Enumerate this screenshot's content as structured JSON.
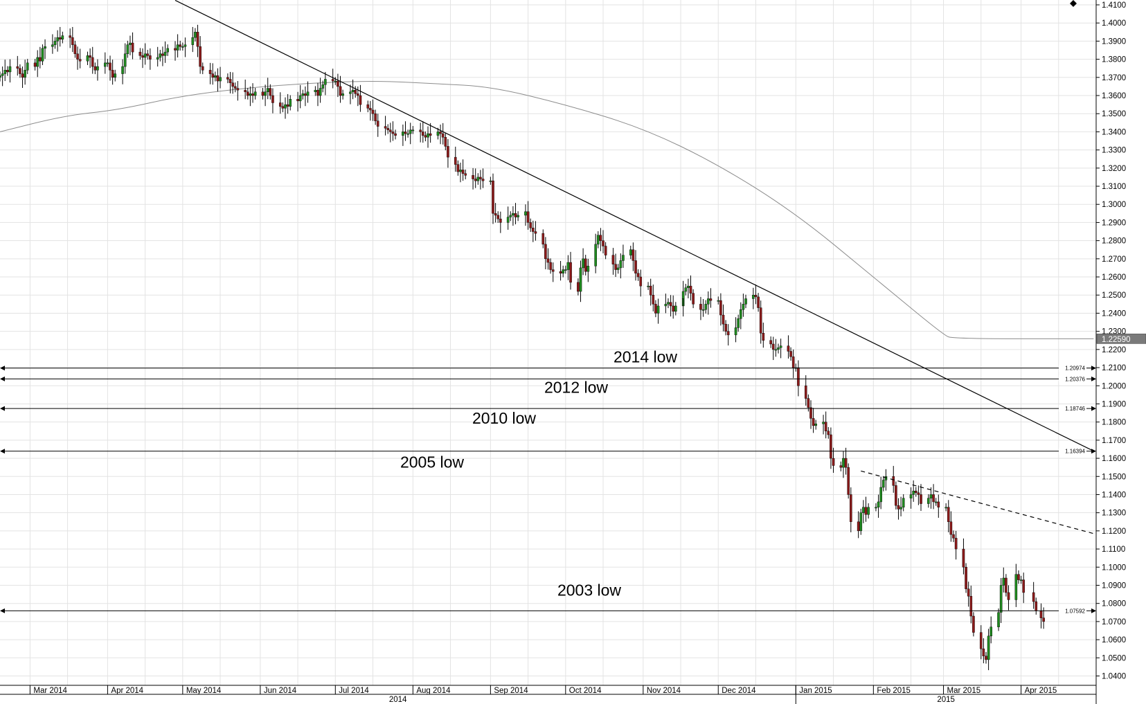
{
  "chart_data": {
    "type": "candlestick",
    "title": "",
    "y_axis": {
      "position": "right",
      "range": [
        1.035,
        1.41
      ],
      "ticks": [
        1.41,
        1.4,
        1.39,
        1.38,
        1.37,
        1.36,
        1.35,
        1.34,
        1.33,
        1.32,
        1.31,
        1.3,
        1.29,
        1.28,
        1.27,
        1.26,
        1.25,
        1.24,
        1.23,
        1.22,
        1.21,
        1.2,
        1.19,
        1.18,
        1.17,
        1.16,
        1.15,
        1.14,
        1.13,
        1.12,
        1.11,
        1.1,
        1.09,
        1.08,
        1.07,
        1.06,
        1.05,
        1.04
      ],
      "tick_labels": [
        "1.4100",
        "1.4000",
        "1.3900",
        "1.3800",
        "1.3700",
        "1.3600",
        "1.3500",
        "1.3400",
        "1.3300",
        "1.3200",
        "1.3100",
        "1.3000",
        "1.2900",
        "1.2800",
        "1.2700",
        "1.2600",
        "1.2500",
        "1.2400",
        "1.2300",
        "1.2200",
        "1.2100",
        "1.2000",
        "1.1900",
        "1.1800",
        "1.1700",
        "1.1600",
        "1.1500",
        "1.1400",
        "1.1300",
        "1.1200",
        "1.1100",
        "1.1000",
        "1.0900",
        "1.0800",
        "1.0700",
        "1.0600",
        "1.0500",
        "1.0400"
      ]
    },
    "x_axis": {
      "months": [
        {
          "label": "Mar 2014",
          "start": "2014-03-01"
        },
        {
          "label": "Apr 2014",
          "start": "2014-04-01"
        },
        {
          "label": "May 2014",
          "start": "2014-05-01"
        },
        {
          "label": "Jun 2014",
          "start": "2014-06-01"
        },
        {
          "label": "Jul 2014",
          "start": "2014-07-01"
        },
        {
          "label": "Aug 2014",
          "start": "2014-08-01"
        },
        {
          "label": "Sep 2014",
          "start": "2014-09-01"
        },
        {
          "label": "Oct 2014",
          "start": "2014-10-01"
        },
        {
          "label": "Nov 2014",
          "start": "2014-11-01"
        },
        {
          "label": "Dec 2014",
          "start": "2014-12-01"
        },
        {
          "label": "Jan 2015",
          "start": "2015-01-01"
        },
        {
          "label": "Feb 2015",
          "start": "2015-02-01"
        },
        {
          "label": "Mar 2015",
          "start": "2015-03-01"
        },
        {
          "label": "Apr 2015",
          "start": "2015-04-01"
        }
      ],
      "years": [
        {
          "label": "2014",
          "start": "2014-01-01"
        },
        {
          "label": "2015",
          "start": "2015-01-01"
        }
      ],
      "range": [
        "2014-02-17",
        "2015-04-30"
      ]
    },
    "current_price": {
      "label": "1.22590",
      "value": 1.2259
    },
    "horizontal_levels": [
      {
        "value": 1.20974,
        "value_label": "1.20974",
        "annotation": "2014 low"
      },
      {
        "value": 1.20376,
        "value_label": "1.20376",
        "annotation": "2012 low"
      },
      {
        "value": 1.18746,
        "value_label": "1.18746",
        "annotation": "2010 low"
      },
      {
        "value": 1.16394,
        "value_label": "1.16394",
        "annotation": "2005 low"
      },
      {
        "value": 1.07592,
        "value_label": "1.07592",
        "annotation": "2003 low"
      }
    ],
    "trendlines": [
      {
        "style": "solid",
        "start": {
          "x": "2014-04-28",
          "y": 1.4125
        },
        "end": {
          "x": "2015-04-30",
          "y": 1.164
        }
      },
      {
        "style": "dashed",
        "start": {
          "x": "2015-01-27",
          "y": 1.153
        },
        "end": {
          "x": "2015-04-30",
          "y": 1.1185
        }
      }
    ],
    "moving_average": {
      "points": [
        {
          "x": "2014-02-17",
          "y": 1.34
        },
        {
          "x": "2014-03-15",
          "y": 1.349
        },
        {
          "x": "2014-04-05",
          "y": 1.352
        },
        {
          "x": "2014-05-01",
          "y": 1.36
        },
        {
          "x": "2014-06-01",
          "y": 1.365
        },
        {
          "x": "2014-07-01",
          "y": 1.3675
        },
        {
          "x": "2014-07-20",
          "y": 1.368
        },
        {
          "x": "2014-08-10",
          "y": 1.3665
        },
        {
          "x": "2014-09-01",
          "y": 1.365
        },
        {
          "x": "2014-10-01",
          "y": 1.355
        },
        {
          "x": "2014-11-01",
          "y": 1.342
        },
        {
          "x": "2014-12-01",
          "y": 1.322
        },
        {
          "x": "2015-01-01",
          "y": 1.295
        },
        {
          "x": "2015-02-01",
          "y": 1.26
        },
        {
          "x": "2015-03-01",
          "y": 1.228
        },
        {
          "x": "2015-03-05",
          "y": 1.2259
        },
        {
          "x": "2015-04-30",
          "y": 1.2259
        }
      ]
    },
    "candles_daily_closes": [
      {
        "period": [
          "2014-02-17",
          "2014-02-28"
        ],
        "closes": [
          1.371,
          1.372,
          1.374,
          1.373,
          1.376,
          1.375,
          1.372,
          1.37,
          1.374,
          1.378
        ]
      },
      {
        "period": [
          "2014-03-03",
          "2014-03-31"
        ],
        "closes": [
          1.376,
          1.381,
          1.379,
          1.386,
          1.387,
          1.388,
          1.39,
          1.392,
          1.391,
          1.393,
          1.392,
          1.388,
          1.383,
          1.38,
          1.379,
          1.382,
          1.381,
          1.376,
          1.374,
          1.376,
          1.378
        ]
      },
      {
        "period": [
          "2014-04-01",
          "2014-04-30"
        ],
        "closes": [
          1.378,
          1.374,
          1.37,
          1.372,
          1.376,
          1.383,
          1.388,
          1.389,
          1.384,
          1.382,
          1.381,
          1.383,
          1.382,
          1.38,
          1.381,
          1.383,
          1.382,
          1.384,
          1.386,
          1.385,
          1.388,
          1.387
        ]
      },
      {
        "period": [
          "2014-05-01",
          "2014-05-31"
        ],
        "closes": [
          1.387,
          1.388,
          1.392,
          1.395,
          1.387,
          1.376,
          1.374,
          1.372,
          1.37,
          1.371,
          1.368,
          1.37,
          1.369,
          1.367,
          1.365,
          1.364,
          1.363,
          1.362,
          1.36,
          1.361,
          1.36,
          1.362
        ]
      },
      {
        "period": [
          "2014-06-01",
          "2014-06-30"
        ],
        "closes": [
          1.36,
          1.362,
          1.364,
          1.36,
          1.356,
          1.354,
          1.353,
          1.355,
          1.354,
          1.358,
          1.357,
          1.36,
          1.361,
          1.36,
          1.362,
          1.363,
          1.36,
          1.364,
          1.366,
          1.369,
          1.368
        ]
      },
      {
        "period": [
          "2014-07-01",
          "2014-07-31"
        ],
        "closes": [
          1.368,
          1.365,
          1.36,
          1.361,
          1.362,
          1.363,
          1.361,
          1.36,
          1.355,
          1.353,
          1.352,
          1.35,
          1.346,
          1.343,
          1.342,
          1.341,
          1.34,
          1.339,
          1.338,
          1.34,
          1.339,
          1.339,
          1.341
        ]
      },
      {
        "period": [
          "2014-08-01",
          "2014-08-31"
        ],
        "closes": [
          1.341,
          1.34,
          1.338,
          1.337,
          1.339,
          1.338,
          1.34,
          1.339,
          1.337,
          1.332,
          1.326,
          1.322,
          1.318,
          1.319,
          1.317,
          1.316,
          1.314,
          1.313,
          1.315,
          1.314,
          1.313
        ]
      },
      {
        "period": [
          "2014-09-01",
          "2014-09-30"
        ],
        "closes": [
          1.313,
          1.295,
          1.294,
          1.292,
          1.29,
          1.293,
          1.294,
          1.295,
          1.293,
          1.294,
          1.296,
          1.29,
          1.287,
          1.285,
          1.284,
          1.278,
          1.27,
          1.268,
          1.264,
          1.263,
          1.262,
          1.264
        ]
      },
      {
        "period": [
          "2014-10-01",
          "2014-10-31"
        ],
        "closes": [
          1.264,
          1.268,
          1.257,
          1.252,
          1.265,
          1.27,
          1.263,
          1.266,
          1.278,
          1.283,
          1.28,
          1.277,
          1.272,
          1.267,
          1.264,
          1.265,
          1.269,
          1.272,
          1.275,
          1.269,
          1.262,
          1.26,
          1.255
        ]
      },
      {
        "period": [
          "2014-11-01",
          "2014-11-30"
        ],
        "closes": [
          1.255,
          1.25,
          1.245,
          1.24,
          1.244,
          1.245,
          1.246,
          1.244,
          1.241,
          1.244,
          1.248,
          1.252,
          1.254,
          1.255,
          1.251,
          1.245,
          1.242,
          1.242,
          1.245,
          1.248,
          1.247
        ]
      },
      {
        "period": [
          "2014-12-01",
          "2014-12-31"
        ],
        "closes": [
          1.247,
          1.239,
          1.234,
          1.23,
          1.228,
          1.232,
          1.237,
          1.242,
          1.245,
          1.248,
          1.25,
          1.249,
          1.243,
          1.229,
          1.225,
          1.223,
          1.22,
          1.22,
          1.221,
          1.222,
          1.219,
          1.216,
          1.21
        ]
      },
      {
        "period": [
          "2015-01-01",
          "2015-01-31"
        ],
        "closes": [
          1.21,
          1.2,
          1.193,
          1.188,
          1.182,
          1.178,
          1.179,
          1.18,
          1.175,
          1.173,
          1.16,
          1.156,
          1.155,
          1.16,
          1.155,
          1.14,
          1.125,
          1.12,
          1.13,
          1.133,
          1.129,
          1.133
        ]
      },
      {
        "period": [
          "2015-02-01",
          "2015-02-28"
        ],
        "closes": [
          1.133,
          1.136,
          1.144,
          1.148,
          1.15,
          1.145,
          1.134,
          1.132,
          1.133,
          1.138,
          1.14,
          1.142,
          1.141,
          1.14,
          1.135,
          1.138,
          1.14,
          1.136,
          1.136,
          1.133
        ]
      },
      {
        "period": [
          "2015-03-01",
          "2015-03-31"
        ],
        "closes": [
          1.133,
          1.125,
          1.118,
          1.116,
          1.11,
          1.1,
          1.088,
          1.084,
          1.073,
          1.064,
          1.055,
          1.051,
          1.049,
          1.062,
          1.067,
          1.075,
          1.09,
          1.094,
          1.086,
          1.082,
          1.096,
          1.093
        ]
      },
      {
        "period": [
          "2015-04-01",
          "2015-04-10"
        ],
        "closes": [
          1.093,
          1.086,
          1.081,
          1.076,
          1.072,
          1.07
        ]
      }
    ]
  }
}
